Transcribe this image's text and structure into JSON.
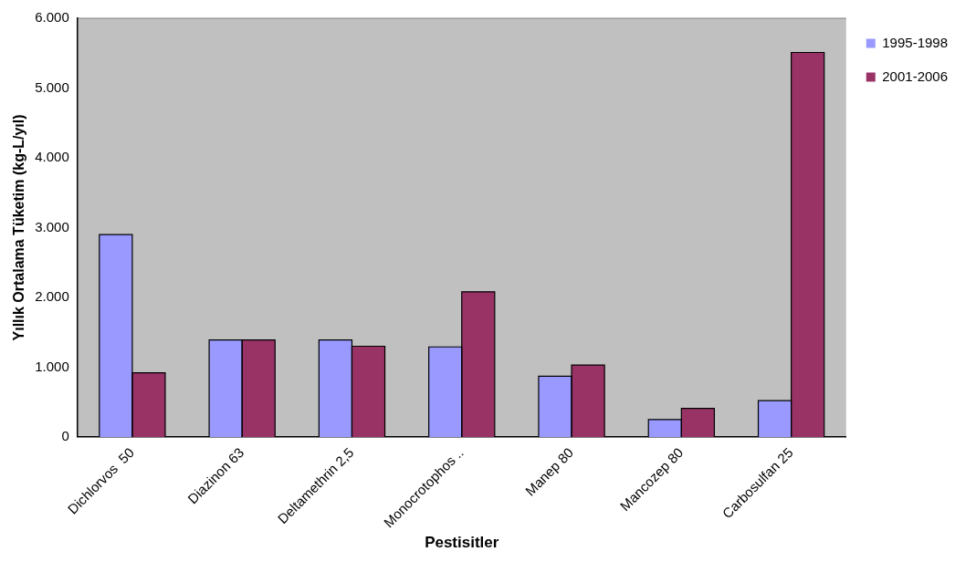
{
  "chart_data": {
    "type": "bar",
    "xlabel": "Pestisitler",
    "ylabel": "Yıllık Ortalama Tüketim (kg-L/yıl)",
    "categories": [
      "Dichlorvos  50",
      "Diazinon 63",
      "Deltamethrin 2,5",
      "Monocrotophos ..",
      "Manep 80",
      "Mancozep 80",
      "Carbosulfan 25"
    ],
    "series": [
      {
        "name": "1995-1998",
        "color": "#9999ff",
        "values": [
          2900,
          1390,
          1390,
          1290,
          870,
          250,
          520
        ]
      },
      {
        "name": "2001-2006",
        "color": "#993366",
        "values": [
          920,
          1390,
          1300,
          2080,
          1030,
          410,
          5510
        ]
      }
    ],
    "ylim": [
      0,
      6000
    ],
    "yticks": [
      0,
      {
        "value": 1000,
        "label": "1.000"
      },
      {
        "value": 2000,
        "label": "2.000"
      },
      {
        "value": 3000,
        "label": "3.000"
      },
      {
        "value": 4000,
        "label": "4.000"
      },
      {
        "value": 5000,
        "label": "5.000"
      },
      {
        "value": 6000,
        "label": "6.000"
      }
    ],
    "grid": false,
    "legend": "right"
  }
}
